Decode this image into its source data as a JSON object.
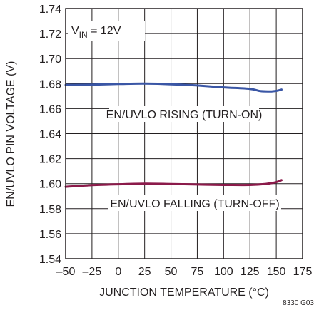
{
  "chart_data": {
    "type": "line",
    "title": "",
    "xlabel": "JUNCTION TEMPERATURE (°C)",
    "ylabel": "EN/UVLO PIN VOLTAGE (V)",
    "xlim": [
      -50,
      175
    ],
    "ylim": [
      1.54,
      1.74
    ],
    "x_ticks": [
      -50,
      -25,
      0,
      25,
      50,
      75,
      100,
      125,
      150,
      175
    ],
    "x_tick_labels": [
      "–50",
      "–25",
      "0",
      "25",
      "50",
      "75",
      "100",
      "125",
      "150",
      "175"
    ],
    "y_ticks": [
      1.54,
      1.56,
      1.58,
      1.6,
      1.62,
      1.64,
      1.66,
      1.68,
      1.7,
      1.72,
      1.74
    ],
    "y_tick_labels": [
      "1.54",
      "1.56",
      "1.58",
      "1.60",
      "1.62",
      "1.64",
      "1.66",
      "1.68",
      "1.70",
      "1.72",
      "1.74"
    ],
    "grid": true,
    "condition": {
      "main": "V",
      "sub": "IN",
      "rest": " = 12V"
    },
    "series": [
      {
        "name": "EN/UVLO RISING (TURN-ON)",
        "color": "#3a56a5",
        "x": [
          -50,
          -25,
          0,
          25,
          50,
          75,
          100,
          125,
          135,
          145,
          150,
          155
        ],
        "y": [
          1.679,
          1.6792,
          1.6797,
          1.68,
          1.6795,
          1.6785,
          1.677,
          1.6758,
          1.674,
          1.6738,
          1.6742,
          1.6752
        ]
      },
      {
        "name": "EN/UVLO FALLING (TURN-OFF)",
        "color": "#8b1a4a",
        "x": [
          -50,
          -25,
          0,
          25,
          50,
          75,
          100,
          125,
          140,
          150,
          155
        ],
        "y": [
          1.5975,
          1.5988,
          1.5995,
          1.6,
          1.5997,
          1.5993,
          1.599,
          1.599,
          1.5998,
          1.6012,
          1.6028
        ]
      }
    ],
    "figure_code": "8330 G03"
  }
}
